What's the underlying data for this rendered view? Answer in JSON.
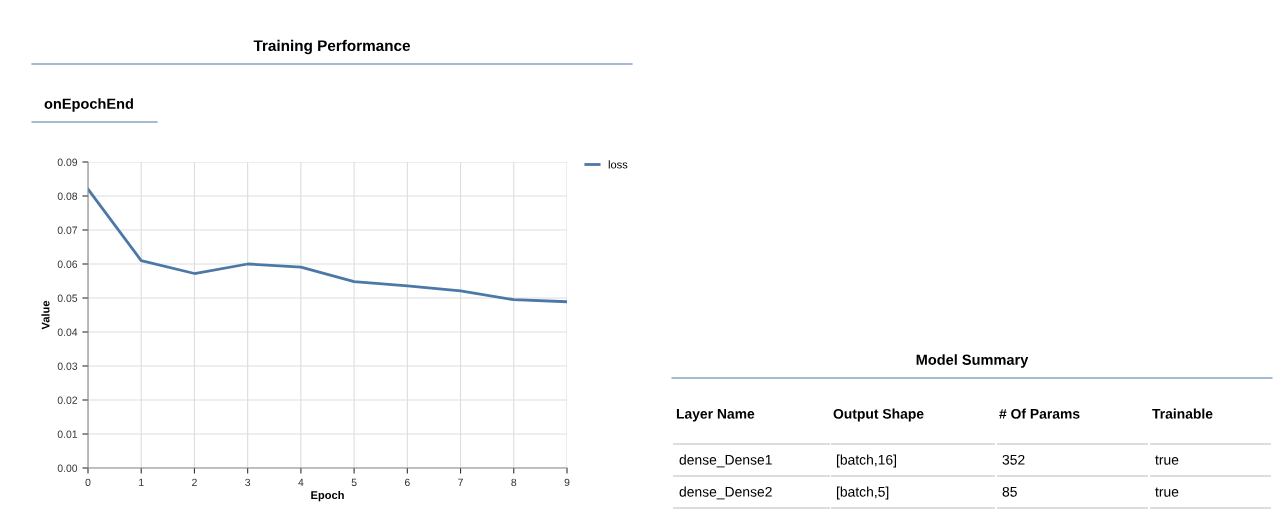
{
  "chart_data": [
    {
      "type": "line",
      "title": "Training Performance",
      "subtitle": "onEpochEnd",
      "xlabel": "Epoch",
      "ylabel": "Value",
      "x": [
        0,
        1,
        2,
        3,
        4,
        5,
        6,
        7,
        8,
        9
      ],
      "series": [
        {
          "name": "loss",
          "color": "#4c78a8",
          "values": [
            0.082,
            0.061,
            0.0572,
            0.06,
            0.0591,
            0.0548,
            0.0536,
            0.0521,
            0.0495,
            0.0489
          ]
        }
      ],
      "xlim": [
        0,
        9
      ],
      "xticks": [
        0,
        1,
        2,
        3,
        4,
        5,
        6,
        7,
        8,
        9
      ],
      "ylim": [
        0,
        0.09
      ],
      "yticks": [
        {
          "value": 0,
          "label": "0.00"
        },
        {
          "value": 0.01,
          "label": "0.01"
        },
        {
          "value": 0.02,
          "label": "0.02"
        },
        {
          "value": 0.03,
          "label": "0.03"
        },
        {
          "value": 0.04,
          "label": "0.04"
        },
        {
          "value": 0.05,
          "label": "0.05"
        },
        {
          "value": 0.06,
          "label": "0.06"
        },
        {
          "value": 0.07,
          "label": "0.07"
        },
        {
          "value": 0.08,
          "label": "0.08"
        },
        {
          "value": 0.09,
          "label": "0.09"
        }
      ],
      "grid": true,
      "legend": "top right"
    },
    {
      "type": "other",
      "title": "Model Summary",
      "categories": [
        "Layer Name",
        "Output Shape",
        "# Of Params",
        "Trainable"
      ],
      "annotations": [
        "dense_Dense1",
        "[batch,16]",
        "352",
        "true",
        "dense_Dense2",
        "[batch,5]",
        "85",
        "true"
      ]
    }
  ]
}
